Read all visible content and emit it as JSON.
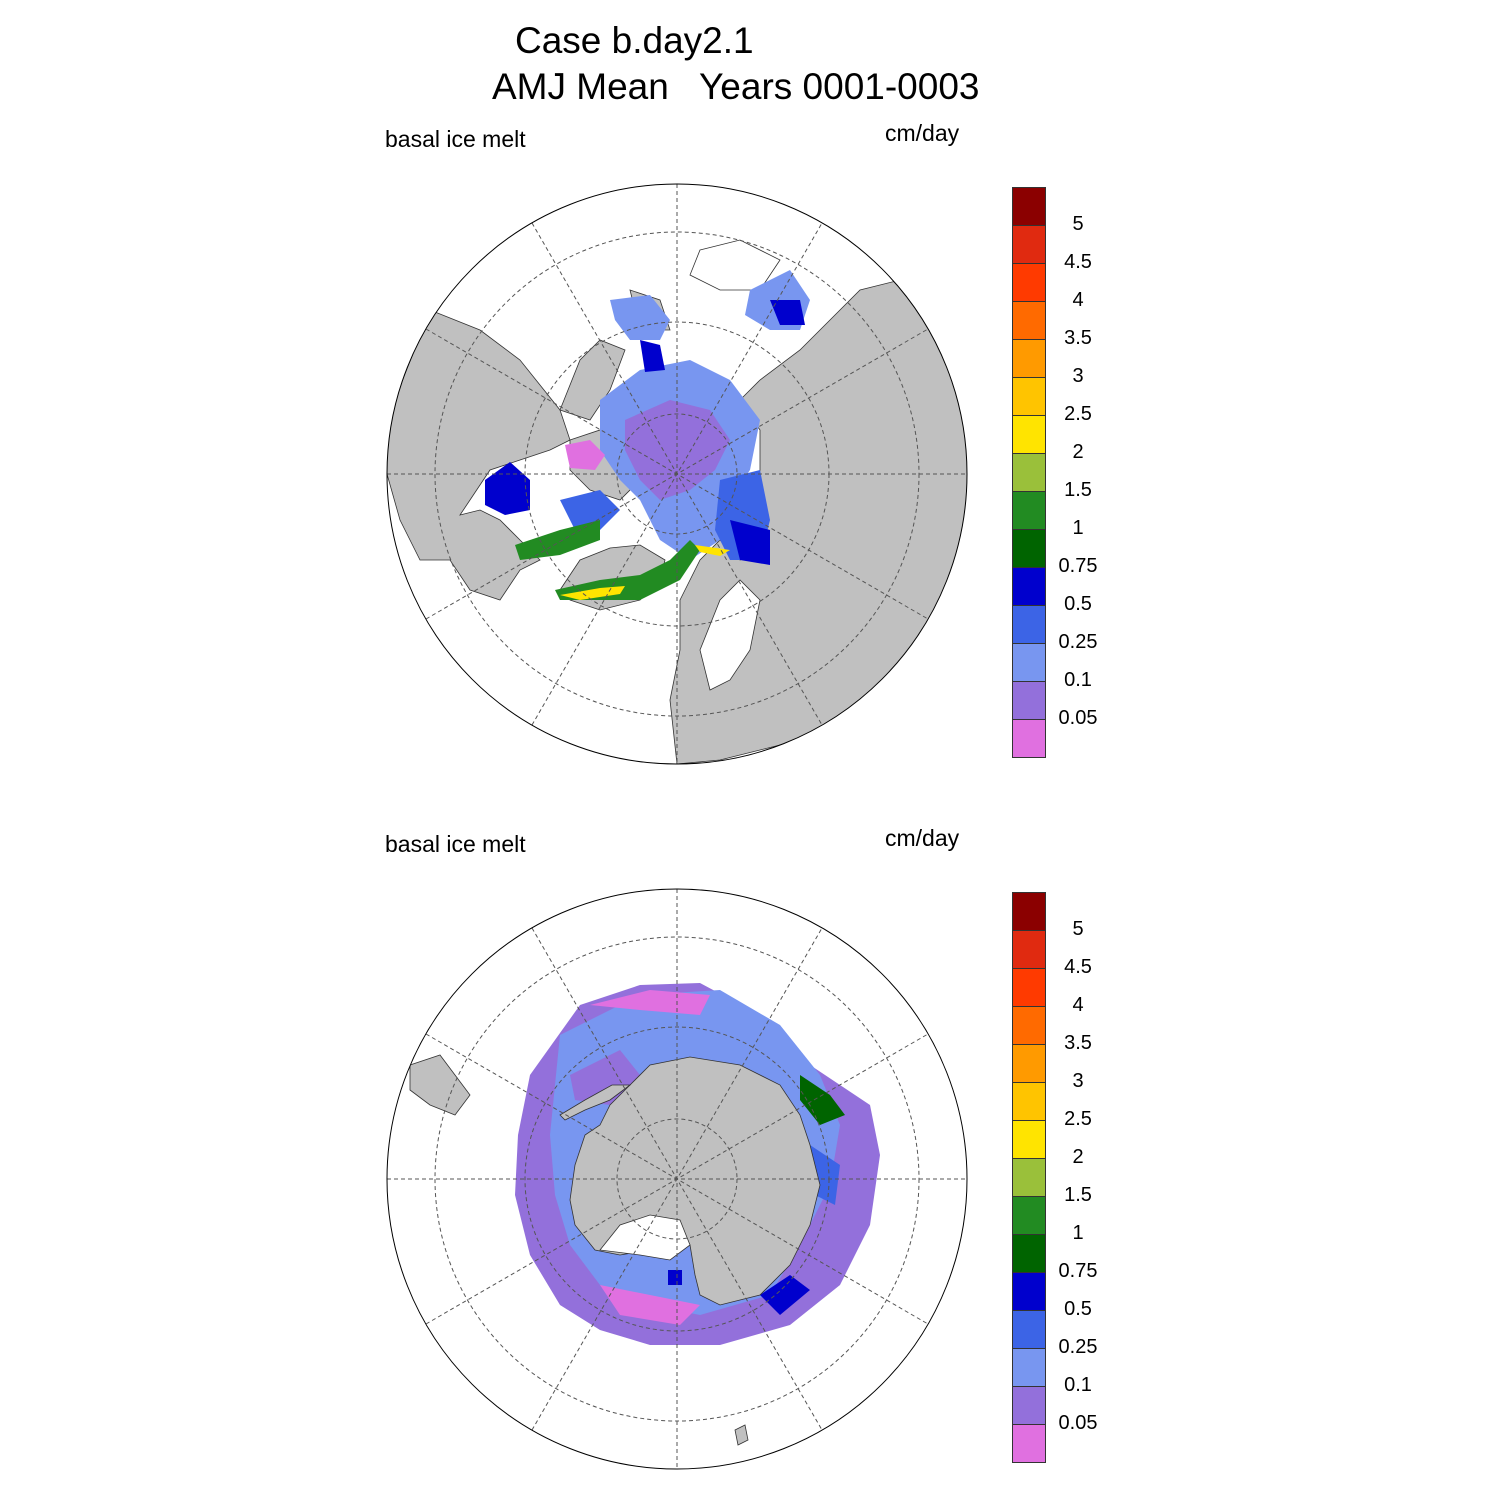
{
  "title": {
    "line1": "Case b.day2.1",
    "line2": "AMJ Mean   Years 0001-0003"
  },
  "panels": [
    {
      "hemisphere": "north",
      "variable_label": "basal ice melt",
      "units_label": "cm/day"
    },
    {
      "hemisphere": "south",
      "variable_label": "basal ice melt",
      "units_label": "cm/day"
    }
  ],
  "colorbar": {
    "tick_labels": [
      "5",
      "4.5",
      "4",
      "3.5",
      "3",
      "2.5",
      "2",
      "1.5",
      "1",
      "0.75",
      "0.5",
      "0.25",
      "0.1",
      "0.05"
    ],
    "colors_top_to_bottom": [
      "#8b0000",
      "#e02a10",
      "#ff3a00",
      "#ff6a00",
      "#ff9a00",
      "#ffc400",
      "#ffe400",
      "#9ac03a",
      "#228b22",
      "#006400",
      "#0000cd",
      "#3c64e6",
      "#7896f0",
      "#9370db",
      "#e070e0"
    ]
  },
  "colors": {
    "land": "#c0c0c0",
    "no_ice": "#ffffff",
    "grid": "#555555"
  }
}
